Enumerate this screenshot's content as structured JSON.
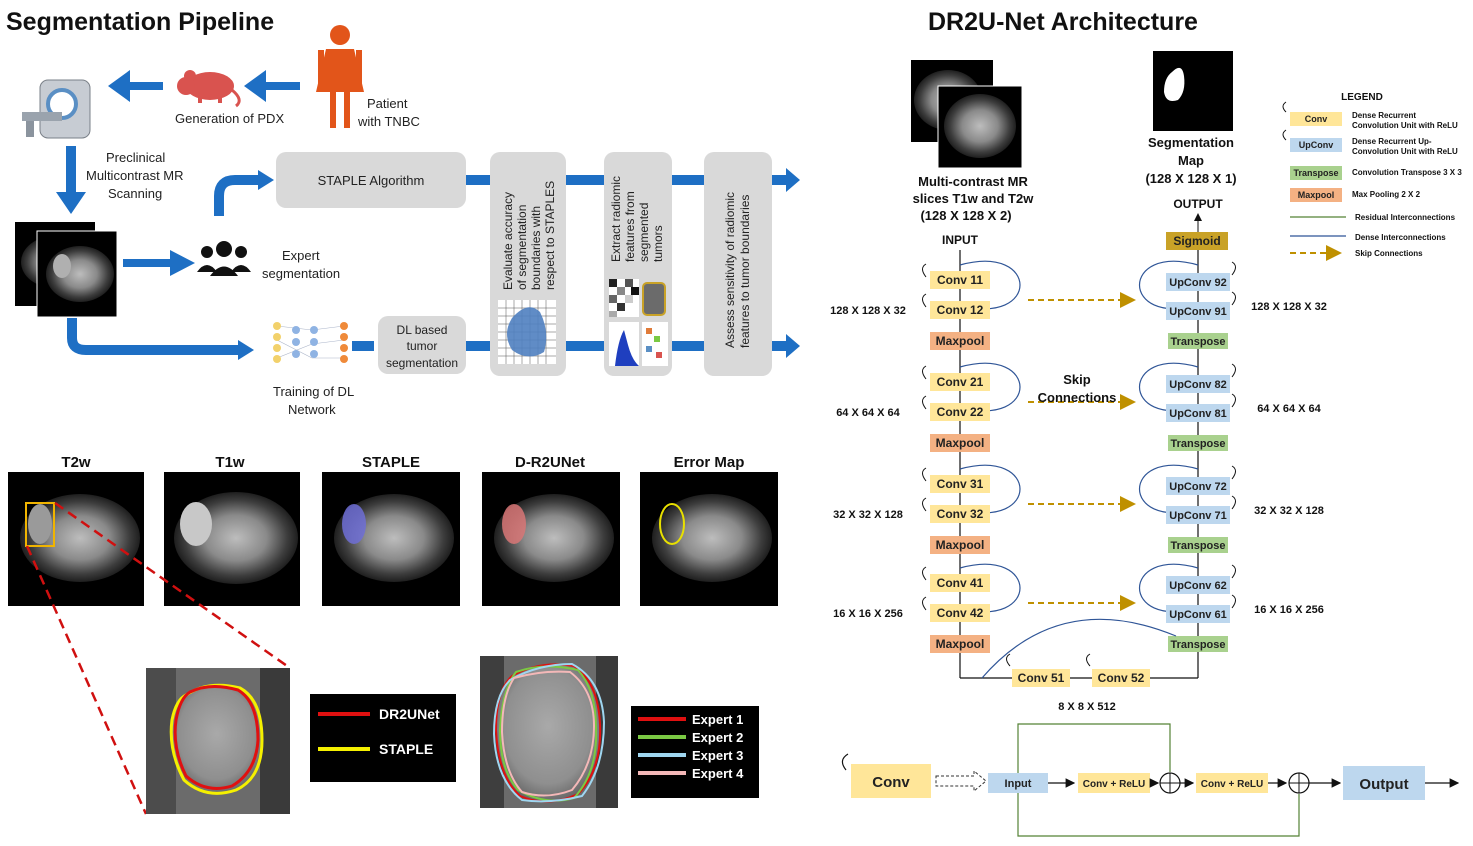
{
  "left": {
    "title": "Segmentation Pipeline",
    "labels": {
      "pdx": "Generation of PDX",
      "patient_1": "Patient",
      "patient_2": "with TNBC",
      "scan_1": "Preclinical",
      "scan_2": "Multicontrast MR",
      "scan_3": "Scanning",
      "expert_1": "Expert",
      "expert_2": "segmentation",
      "dl_train_1": "Training of DL",
      "dl_train_2": "Network"
    },
    "boxes": {
      "staple": "STAPLE Algorithm",
      "dl_seg_1": "DL based",
      "dl_seg_2": "tumor",
      "dl_seg_3": "segmentation",
      "eval": [
        "Evaluate  accuracy",
        "of segmentation",
        "boundaries with",
        "respect to STAPLES"
      ],
      "extract": [
        "Extract radiomic",
        "features from",
        "segmented",
        "tumors"
      ],
      "assess": [
        "Assess sensitivity of radiomic",
        "features to tumor boundaries"
      ]
    },
    "images": [
      "T2w",
      "T1w",
      "STAPLE",
      "D-R2UNet",
      "Error Map"
    ],
    "legend1": [
      {
        "label": "DR2UNet",
        "color": "#e01010"
      },
      {
        "label": "STAPLE",
        "color": "#f5f000"
      }
    ],
    "legend2": [
      {
        "label": "Expert 1",
        "color": "#e01010"
      },
      {
        "label": "Expert 2",
        "color": "#7ac943"
      },
      {
        "label": "Expert 3",
        "color": "#9fd6f0"
      },
      {
        "label": "Expert 4",
        "color": "#f4b8b8"
      }
    ]
  },
  "right": {
    "title": "DR2U-Net Architecture",
    "input_caption": [
      "Multi-contrast MR",
      "slices T1w and T2w",
      "(128 X 128 X 2)"
    ],
    "input_label": "INPUT",
    "output_caption": [
      "Segmentation",
      "Map",
      "(128 X 128 X 1)"
    ],
    "output_label": "OUTPUT",
    "sigmoid": "Sigmoid",
    "skip_label": [
      "Skip",
      "Connections"
    ],
    "encoder": [
      {
        "c1": "Conv 11",
        "c2": "Conv 12",
        "pool": "Maxpool",
        "dim": "128 X 128 X 32"
      },
      {
        "c1": "Conv 21",
        "c2": "Conv 22",
        "pool": "Maxpool",
        "dim": "64 X 64 X 64"
      },
      {
        "c1": "Conv 31",
        "c2": "Conv 32",
        "pool": "Maxpool",
        "dim": "32 X 32 X 128"
      },
      {
        "c1": "Conv 41",
        "c2": "Conv 42",
        "pool": "Maxpool",
        "dim": "16 X 16 X 256"
      }
    ],
    "decoder": [
      {
        "c1": "UpConv 92",
        "c2": "UpConv 91",
        "tr": "Transpose",
        "dim": "128 X 128 X 32"
      },
      {
        "c1": "UpConv 82",
        "c2": "UpConv 81",
        "tr": "Transpose",
        "dim": "64 X 64 X 64"
      },
      {
        "c1": "UpConv 72",
        "c2": "UpConv 71",
        "tr": "Transpose",
        "dim": "32 X 32 X 128"
      },
      {
        "c1": "UpConv 62",
        "c2": "UpConv 61",
        "tr": "Transpose",
        "dim": "16 X 16 X 256"
      }
    ],
    "bottleneck": {
      "c1": "Conv 51",
      "c2": "Conv 52",
      "dim": "8 X 8 X 512"
    },
    "legend": {
      "title": "LEGEND",
      "conv": {
        "tag": "Conv",
        "desc": [
          "Dense Recurrent",
          "Convolution Unit with ReLU"
        ]
      },
      "upconv": {
        "tag": "UpConv",
        "desc": [
          "Dense Recurrent Up-",
          "Convolution Unit with ReLU"
        ]
      },
      "transpose": {
        "tag": "Transpose",
        "desc": "Convolution Transpose 3 X 3"
      },
      "maxpool": {
        "tag": "Maxpool",
        "desc": "Max Pooling 2 X 2"
      },
      "residual": "Residual Interconnections",
      "dense": "Dense Interconnections",
      "skip": "Skip Connections"
    },
    "unit": {
      "conv": "Conv",
      "input": "Input",
      "cr1": "Conv + ReLU",
      "cr2": "Conv + ReLU",
      "output": "Output"
    }
  },
  "colors": {
    "arrow_blue": "#1e6fc4",
    "gray_box": "#d9d9d9",
    "conv": "#ffe699",
    "upconv": "#bdd7ee",
    "transpose": "#a9d18e",
    "maxpool": "#f4b183",
    "sigmoid": "#c9a227",
    "residual": "#548235",
    "dense": "#2f5597",
    "skip": "#bf9000",
    "patient": "#e2551a",
    "mouse": "#d9534f"
  }
}
